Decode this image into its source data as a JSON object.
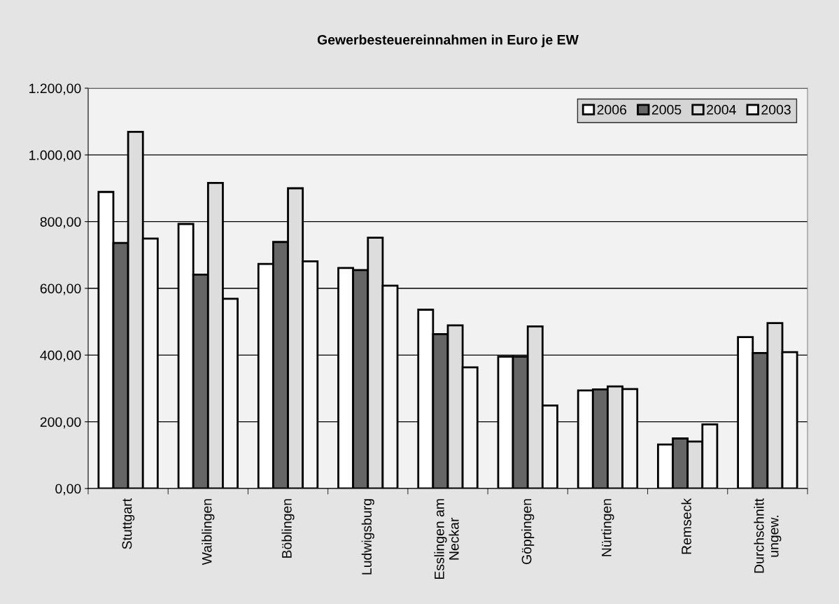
{
  "chart_data": {
    "type": "bar",
    "title": "Gewerbesteuereinnahmen in Euro je EW",
    "categories": [
      "Stuttgart",
      "Waiblingen",
      "Böblingen",
      "Ludwigsburg",
      "Esslingen am\nNeckar",
      "Göppingen",
      "Nürtingen",
      "Remseck",
      "Durchschnitt\nungew."
    ],
    "series": [
      {
        "name": "2006",
        "color": "#ffffff",
        "values": [
          889,
          793,
          673,
          661,
          536,
          395,
          294,
          132,
          454
        ]
      },
      {
        "name": "2005",
        "color": "#666666",
        "values": [
          736,
          641,
          739,
          655,
          463,
          395,
          297,
          150,
          406
        ]
      },
      {
        "name": "2004",
        "color": "#dddddd",
        "values": [
          1069,
          916,
          900,
          752,
          489,
          486,
          306,
          141,
          496
        ]
      },
      {
        "name": "2003",
        "color": "#f4f4f4",
        "values": [
          749,
          569,
          681,
          608,
          363,
          249,
          298,
          192,
          409
        ]
      }
    ],
    "ylim": [
      0,
      1200
    ],
    "yticks": [
      {
        "value": 0,
        "label": "0,00"
      },
      {
        "value": 200,
        "label": "200,00"
      },
      {
        "value": 400,
        "label": "400,00"
      },
      {
        "value": 600,
        "label": "600,00"
      },
      {
        "value": 800,
        "label": "800,00"
      },
      {
        "value": 1000,
        "label": "1.000,00"
      },
      {
        "value": 1200,
        "label": "1.200,00"
      }
    ],
    "grid": "y",
    "legend": "top right"
  }
}
